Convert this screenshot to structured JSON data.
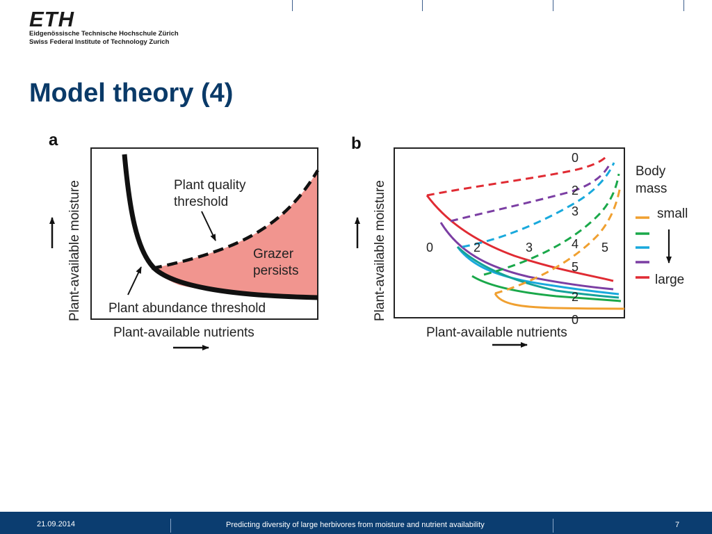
{
  "header": {
    "logo": "ETH",
    "institution_de": "Eidgenössische Technische Hochschule Zürich",
    "institution_en": "Swiss Federal Institute of Technology Zurich"
  },
  "slide": {
    "title": "Model theory (4)"
  },
  "panel_a": {
    "letter": "a",
    "ylabel": "Plant-available moisture",
    "xlabel": "Plant-available nutrients",
    "label_quality": [
      "Plant quality",
      "threshold"
    ],
    "label_grazer": [
      "Grazer",
      "persists"
    ],
    "label_abundance": "Plant abundance threshold",
    "fill_color": "#f1958f"
  },
  "panel_b": {
    "letter": "b",
    "ylabel": "Plant-available moisture",
    "xlabel": "Plant-available nutrients",
    "legend": {
      "title": [
        "Body",
        "mass"
      ],
      "small_label": "small",
      "large_label": "large",
      "colors": [
        "#f0a030",
        "#1aa84a",
        "#19a9dc",
        "#7b3ea3",
        "#e02b33"
      ]
    },
    "top_numbers": [
      "0",
      "2",
      "3",
      "4",
      "5",
      "2",
      "0"
    ],
    "mid_numbers": [
      "0",
      "2",
      "3",
      "5"
    ]
  },
  "footer": {
    "date": "21.09.2014",
    "description": "Predicting diversity of large herbivores from moisture and nutrient availability",
    "page": "7"
  }
}
